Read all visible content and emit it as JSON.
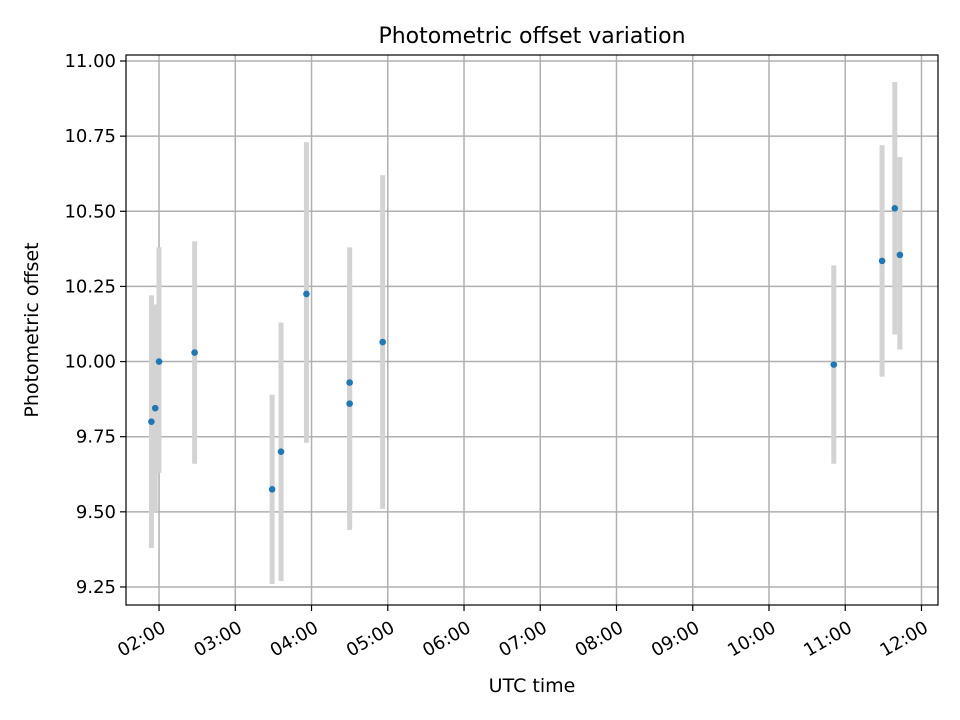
{
  "chart_data": {
    "type": "scatter",
    "title": "Photometric offset variation",
    "xlabel": "UTC time",
    "ylabel": "Photometric offset",
    "x_ticks": [
      "02:00",
      "03:00",
      "04:00",
      "05:00",
      "06:00",
      "07:00",
      "08:00",
      "09:00",
      "10:00",
      "11:00",
      "12:00"
    ],
    "y_ticks": [
      "9.25",
      "9.50",
      "9.75",
      "10.00",
      "10.25",
      "10.50",
      "10.75",
      "11.00"
    ],
    "xlim": [
      "01:34",
      "12:13"
    ],
    "ylim": [
      9.19,
      11.02
    ],
    "grid": true,
    "colors": {
      "point": "#1f77b4",
      "errorbar": "#d3d3d3",
      "grid": "#b0b0b0"
    },
    "points": [
      {
        "x": "01:54",
        "y": 9.8,
        "ymin": 9.38,
        "ymax": 10.22
      },
      {
        "x": "01:57",
        "y": 9.845,
        "ymin": 9.5,
        "ymax": 10.19
      },
      {
        "x": "02:00",
        "y": 10.0,
        "ymin": 9.63,
        "ymax": 10.38
      },
      {
        "x": "02:28",
        "y": 10.03,
        "ymin": 9.66,
        "ymax": 10.4
      },
      {
        "x": "03:29",
        "y": 9.575,
        "ymin": 9.26,
        "ymax": 9.89
      },
      {
        "x": "03:36",
        "y": 9.7,
        "ymin": 9.27,
        "ymax": 10.13
      },
      {
        "x": "03:56",
        "y": 10.225,
        "ymin": 9.73,
        "ymax": 10.73
      },
      {
        "x": "04:30",
        "y": 9.86,
        "ymin": 9.44,
        "ymax": 10.28
      },
      {
        "x": "04:30",
        "y": 9.93,
        "ymin": 9.48,
        "ymax": 10.38
      },
      {
        "x": "04:56",
        "y": 10.065,
        "ymin": 9.51,
        "ymax": 10.62
      },
      {
        "x": "10:51",
        "y": 9.99,
        "ymin": 9.66,
        "ymax": 10.32
      },
      {
        "x": "11:29",
        "y": 10.335,
        "ymin": 9.95,
        "ymax": 10.72
      },
      {
        "x": "11:39",
        "y": 10.51,
        "ymin": 10.09,
        "ymax": 10.93
      },
      {
        "x": "11:43",
        "y": 10.355,
        "ymin": 10.04,
        "ymax": 10.68
      }
    ]
  }
}
